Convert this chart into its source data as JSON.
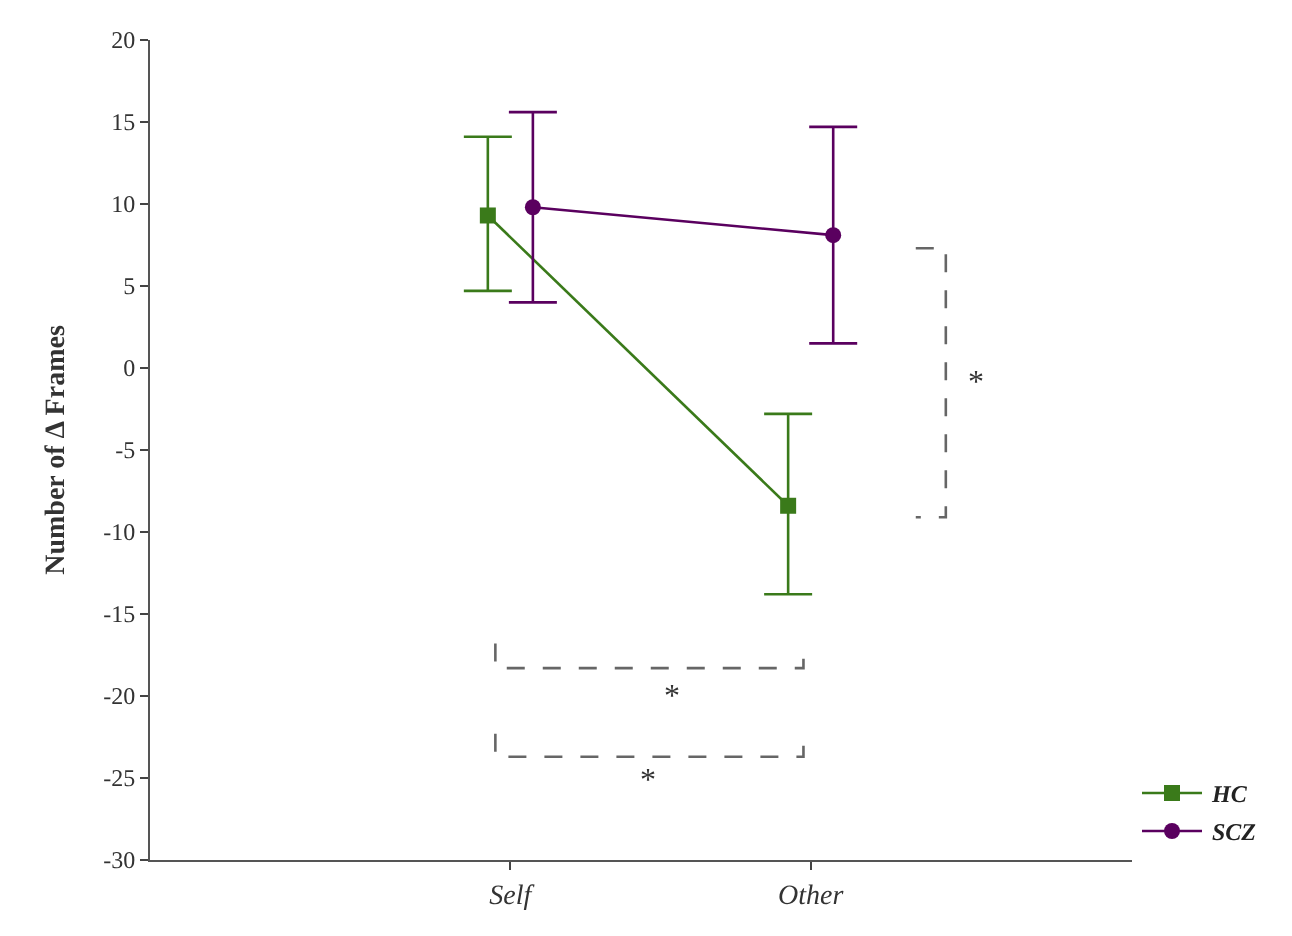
{
  "chart_data": {
    "type": "line",
    "ylabel": "Number of Δ Frames",
    "categories": [
      "Self",
      "Other"
    ],
    "series": [
      {
        "name": "HC",
        "color": "#3a7a1a",
        "values": [
          9.3,
          -8.4
        ],
        "errors": [
          [
            4.7,
            14.1
          ],
          [
            -13.8,
            -2.8
          ]
        ],
        "marker": "square"
      },
      {
        "name": "SCZ",
        "color": "#5a005f",
        "values": [
          9.8,
          8.1
        ],
        "errors": [
          [
            4.0,
            15.6
          ],
          [
            1.5,
            14.7
          ]
        ],
        "marker": "circle"
      }
    ],
    "ylim": [
      -30,
      20
    ],
    "yticks": [
      -30,
      -25,
      -20,
      -15,
      -10,
      -5,
      0,
      5,
      10,
      15,
      20
    ],
    "annotations": [
      "*",
      "*",
      "*"
    ],
    "legend": "bottom right",
    "line_style": "solid"
  }
}
